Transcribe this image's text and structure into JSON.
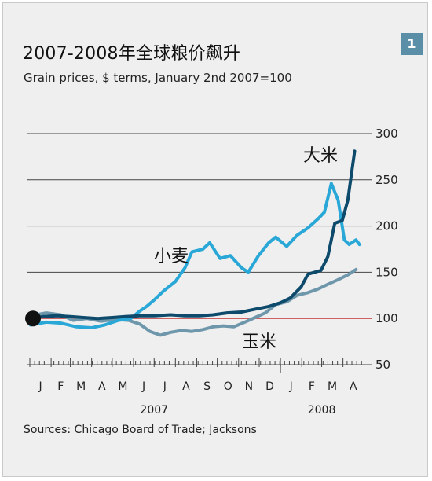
{
  "header": {
    "title": "2007-2008年全球粮价飙升",
    "subtitle": "Grain prices, $ terms, January 2nd 2007=100",
    "badge": "1"
  },
  "footer": {
    "source": "Sources: Chicago Board of Trade; Jacksons"
  },
  "colors": {
    "frame_bg": "#efefef",
    "rice": "#0d4a6b",
    "wheat": "#29a8d8",
    "corn": "#6f97ab",
    "baseline": "#e05050",
    "start_dot": "#111111"
  },
  "chart_data": {
    "type": "line",
    "title": "2007-2008年全球粮价飙升",
    "subtitle": "Grain prices, $ terms, January 2nd 2007=100",
    "ylim": [
      50,
      300
    ],
    "y_ticks": [
      50,
      100,
      150,
      200,
      250,
      300
    ],
    "y_axis_side": "right",
    "grid": true,
    "baseline_value": 100,
    "x_range": [
      "2007-01-01",
      "2008-04-30"
    ],
    "month_labels": [
      "J",
      "F",
      "M",
      "A",
      "M",
      "J",
      "J",
      "A",
      "S",
      "O",
      "N",
      "D",
      "J",
      "F",
      "M",
      "A"
    ],
    "year_labels": [
      {
        "label": "2007",
        "month_index": 6
      },
      {
        "label": "2008",
        "month_index": 14
      }
    ],
    "series": [
      {
        "name": "大米",
        "color_key": "rice",
        "points": [
          [
            "2007-01-02",
            100
          ],
          [
            "2007-01-20",
            102
          ],
          [
            "2007-02-10",
            103
          ],
          [
            "2007-03-01",
            102
          ],
          [
            "2007-03-20",
            101
          ],
          [
            "2007-04-10",
            100
          ],
          [
            "2007-05-01",
            101
          ],
          [
            "2007-05-20",
            102
          ],
          [
            "2007-06-10",
            103
          ],
          [
            "2007-07-01",
            103
          ],
          [
            "2007-07-25",
            104
          ],
          [
            "2007-08-15",
            103
          ],
          [
            "2007-09-05",
            103
          ],
          [
            "2007-09-25",
            104
          ],
          [
            "2007-10-15",
            106
          ],
          [
            "2007-11-05",
            107
          ],
          [
            "2007-11-25",
            110
          ],
          [
            "2007-12-15",
            113
          ],
          [
            "2008-01-01",
            117
          ],
          [
            "2008-01-15",
            122
          ],
          [
            "2008-01-31",
            134
          ],
          [
            "2008-02-10",
            148
          ],
          [
            "2008-02-29",
            152
          ],
          [
            "2008-03-10",
            167
          ],
          [
            "2008-03-20",
            203
          ],
          [
            "2008-03-31",
            206
          ],
          [
            "2008-04-08",
            228
          ],
          [
            "2008-04-18",
            281
          ]
        ]
      },
      {
        "name": "小麦",
        "color_key": "wheat",
        "points": [
          [
            "2007-01-02",
            93
          ],
          [
            "2007-01-25",
            96
          ],
          [
            "2007-02-15",
            95
          ],
          [
            "2007-03-10",
            91
          ],
          [
            "2007-04-01",
            90
          ],
          [
            "2007-04-20",
            93
          ],
          [
            "2007-05-10",
            98
          ],
          [
            "2007-05-28",
            100
          ],
          [
            "2007-06-10",
            108
          ],
          [
            "2007-06-20",
            113
          ],
          [
            "2007-07-01",
            120
          ],
          [
            "2007-07-15",
            130
          ],
          [
            "2007-08-01",
            140
          ],
          [
            "2007-08-15",
            155
          ],
          [
            "2007-08-25",
            172
          ],
          [
            "2007-09-10",
            175
          ],
          [
            "2007-09-20",
            182
          ],
          [
            "2007-10-05",
            165
          ],
          [
            "2007-10-20",
            168
          ],
          [
            "2007-11-05",
            155
          ],
          [
            "2007-11-15",
            150
          ],
          [
            "2007-11-30",
            168
          ],
          [
            "2007-12-15",
            182
          ],
          [
            "2007-12-25",
            188
          ],
          [
            "2008-01-10",
            178
          ],
          [
            "2008-01-25",
            190
          ],
          [
            "2008-02-10",
            198
          ],
          [
            "2008-02-25",
            208
          ],
          [
            "2008-03-05",
            215
          ],
          [
            "2008-03-15",
            246
          ],
          [
            "2008-03-25",
            228
          ],
          [
            "2008-04-03",
            185
          ],
          [
            "2008-04-10",
            180
          ],
          [
            "2008-04-20",
            185
          ],
          [
            "2008-04-25",
            180
          ]
        ]
      },
      {
        "name": "玉米",
        "color_key": "corn",
        "points": [
          [
            "2007-01-02",
            103
          ],
          [
            "2007-01-25",
            106
          ],
          [
            "2007-02-15",
            104
          ],
          [
            "2007-03-05",
            98
          ],
          [
            "2007-03-25",
            100
          ],
          [
            "2007-04-15",
            97
          ],
          [
            "2007-05-05",
            99
          ],
          [
            "2007-05-25",
            98
          ],
          [
            "2007-06-10",
            94
          ],
          [
            "2007-06-25",
            86
          ],
          [
            "2007-07-10",
            82
          ],
          [
            "2007-07-25",
            85
          ],
          [
            "2007-08-10",
            87
          ],
          [
            "2007-08-25",
            86
          ],
          [
            "2007-09-10",
            88
          ],
          [
            "2007-09-25",
            91
          ],
          [
            "2007-10-10",
            92
          ],
          [
            "2007-10-25",
            91
          ],
          [
            "2007-11-10",
            96
          ],
          [
            "2007-11-25",
            101
          ],
          [
            "2007-12-10",
            106
          ],
          [
            "2007-12-25",
            115
          ],
          [
            "2008-01-10",
            118
          ],
          [
            "2008-01-25",
            125
          ],
          [
            "2008-02-10",
            128
          ],
          [
            "2008-02-25",
            132
          ],
          [
            "2008-03-10",
            137
          ],
          [
            "2008-03-25",
            142
          ],
          [
            "2008-04-10",
            148
          ],
          [
            "2008-04-20",
            153
          ]
        ]
      }
    ],
    "series_labels": [
      {
        "text": "大米",
        "series": "大米"
      },
      {
        "text": "小麦",
        "series": "小麦"
      },
      {
        "text": "玉米",
        "series": "玉米"
      }
    ]
  }
}
